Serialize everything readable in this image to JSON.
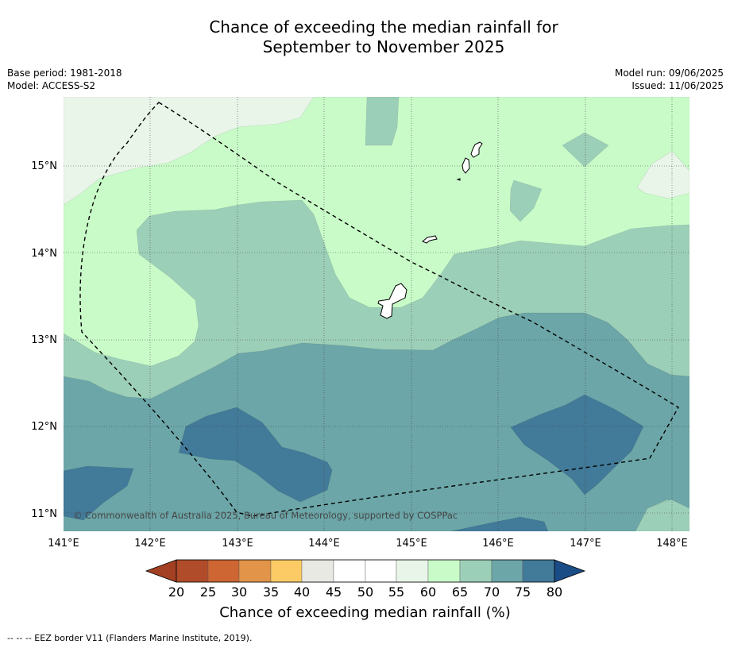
{
  "title": {
    "line1": "Chance of exceeding the median rainfall for",
    "line2": "September to November 2025"
  },
  "meta_left": {
    "base_period": "Base period: 1981-2018",
    "model": "Model: ACCESS-S2"
  },
  "meta_right": {
    "model_run": "Model run: 09/06/2025",
    "issued": "Issued: 11/06/2025"
  },
  "map": {
    "lat_labels": [
      "15°N",
      "14°N",
      "13°N",
      "12°N",
      "11°N"
    ],
    "lon_labels": [
      "141°E",
      "142°E",
      "143°E",
      "144°E",
      "145°E",
      "146°E",
      "147°E",
      "148°E"
    ],
    "copyright": "© Commonwealth of Australia 2025, Bureau of Meteorology, supported by COSPPac",
    "region_colors": {
      "55-60": "#e9f5e9",
      "60-65": "#c9fbc9",
      "65-70": "#9ccfb8",
      "70-75": "#6ca6a8",
      "75-80": "#427a99"
    }
  },
  "colorbar": {
    "ticks": [
      "20",
      "25",
      "30",
      "35",
      "40",
      "45",
      "50",
      "55",
      "60",
      "65",
      "70",
      "75",
      "80"
    ],
    "colors": [
      "#b14c2a",
      "#cd6633",
      "#e29448",
      "#fccb66",
      "#e9e9e4",
      "#ffffff",
      "#ffffff",
      "#e9f5e9",
      "#c9fbc9",
      "#9ccfb8",
      "#6ca6a8",
      "#427a99"
    ],
    "under_color": "#a33f22",
    "over_color": "#1a4d86",
    "label": "Chance of exceeding median rainfall (%)"
  },
  "footnote": "--  --  -- EEZ border V11 (Flanders Marine Institute, 2019)."
}
